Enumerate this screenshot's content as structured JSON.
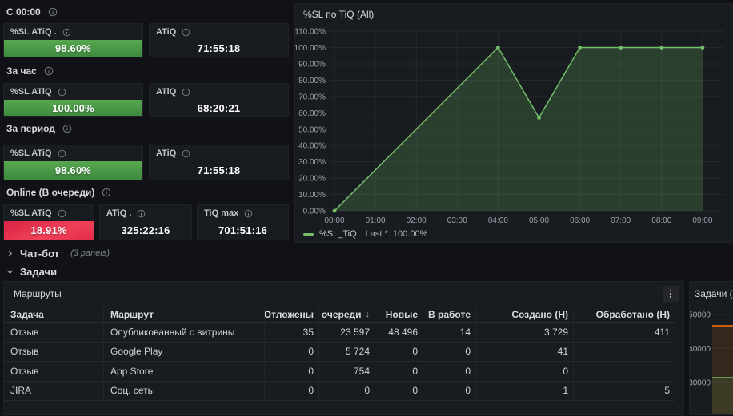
{
  "colors": {
    "stat_green": "#56a64b",
    "stat_red": "#e02f44",
    "series_green": "#73bf69",
    "series_orange": "#ff780a",
    "panel_bg": "#181b1f",
    "page_bg": "#111217"
  },
  "stat_sections": [
    {
      "label": "С 00:00",
      "panels": [
        {
          "title": "%SL ATiQ .",
          "value": "98.60%",
          "style": "green"
        },
        {
          "title": "ATiQ",
          "value": "71:55:18",
          "style": "plain"
        }
      ]
    },
    {
      "label": "За час",
      "panels": [
        {
          "title": "%SL ATiQ",
          "value": "100.00%",
          "style": "green"
        },
        {
          "title": "ATiQ",
          "value": "68:20:21",
          "style": "plain"
        }
      ]
    },
    {
      "label": "За период",
      "panels": [
        {
          "title": "%SL ATiQ",
          "value": "98.60%",
          "style": "green"
        },
        {
          "title": "ATiQ",
          "value": "71:55:18",
          "style": "plain"
        }
      ]
    },
    {
      "label": "Online (В очереди)",
      "panels": [
        {
          "title": "%SL ATiQ",
          "value": "18.91%",
          "style": "red"
        },
        {
          "title": "ATiQ .",
          "value": "325:22:16",
          "style": "plain"
        },
        {
          "title": "TiQ max",
          "value": "701:51:16",
          "style": "plain"
        }
      ]
    }
  ],
  "timeseries_panel": {
    "title": "%SL по TiQ (All)",
    "legend_series": "%SL_TiQ",
    "legend_stat": "Last *: 100.00%"
  },
  "dashboard_rows": {
    "chatbot": {
      "label": "Чат-бот",
      "meta": "(3 panels)"
    },
    "tasks": {
      "label": "Задачи"
    }
  },
  "table_panel": {
    "title": "Маршруты",
    "columns": [
      "Задача",
      "Маршрут",
      "Отложены",
      "В очереди",
      "Новые",
      "В работе",
      "Создано (Н)",
      "Обработано (Н)"
    ],
    "sort_column_index": 3,
    "sort_direction": "desc",
    "rows": [
      [
        "Отзыв",
        "Опубликованный с витрины",
        "35",
        "23 597",
        "48 496",
        "14",
        "3 729",
        "411"
      ],
      [
        "Отзыв",
        "Google Play",
        "0",
        "5 724",
        "0",
        "0",
        "41",
        ""
      ],
      [
        "Отзыв",
        "App Store",
        "0",
        "754",
        "0",
        "0",
        "0",
        ""
      ],
      [
        "JIRA",
        "Соц. сеть",
        "0",
        "0",
        "0",
        "0",
        "1",
        "5"
      ]
    ]
  },
  "mini_panel": {
    "title": "Задачи (All)"
  },
  "chart_data": [
    {
      "type": "area",
      "title": "%SL по TiQ (All)",
      "x": [
        "00:00",
        "04:00",
        "05:00",
        "06:00",
        "07:00",
        "08:00",
        "09:00"
      ],
      "series": [
        {
          "name": "%SL_TiQ",
          "color": "#73bf69",
          "values": [
            0,
            100,
            57,
            100,
            100,
            100,
            100
          ]
        }
      ],
      "ylim": [
        0,
        110
      ],
      "ytick_step": 10,
      "ytick_suffix": ".00%",
      "xticks": [
        "00:00",
        "01:00",
        "02:00",
        "03:00",
        "04:00",
        "05:00",
        "06:00",
        "07:00",
        "08:00",
        "09:00"
      ],
      "grid": true,
      "legend": {
        "position": "bottom",
        "entries": [
          {
            "label": "%SL_TiQ",
            "stat": "Last *: 100.00%"
          }
        ]
      }
    },
    {
      "type": "line",
      "title": "Задачи (All)",
      "yticks": [
        50000,
        40000,
        30000
      ],
      "ylim": [
        28500,
        52000
      ],
      "grid": true,
      "series": [
        {
          "name": "orange-series",
          "color": "#ff780a",
          "approx_last_value": 46700
        },
        {
          "name": "green-series",
          "color": "#73bf69",
          "approx_last_value": 31400
        }
      ]
    }
  ]
}
